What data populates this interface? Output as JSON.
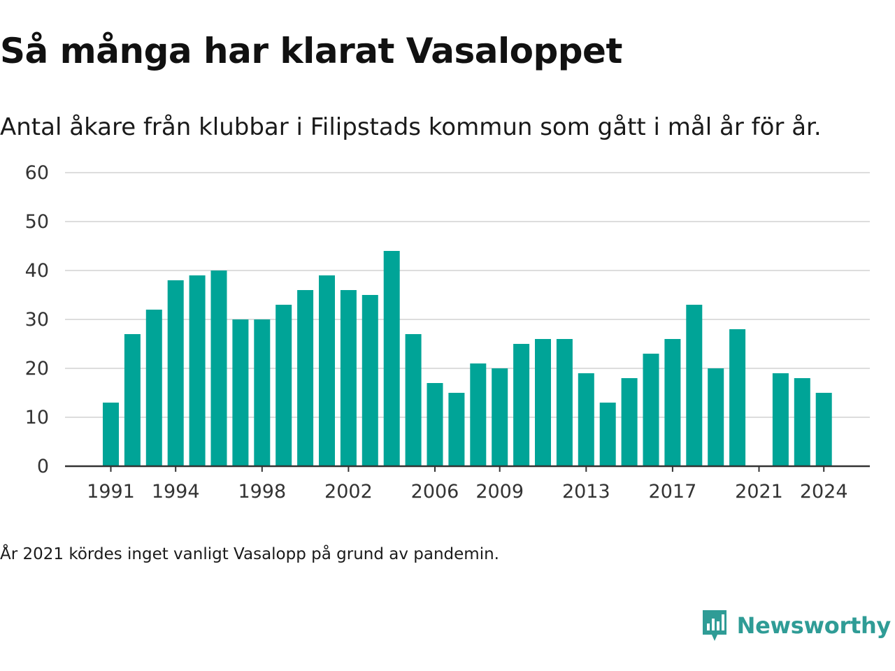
{
  "header": {
    "title": "Så många har klarat Vasaloppet",
    "subtitle": "Antal åkare från klubbar i Filipstads kommun som gått i mål år för år."
  },
  "footer": {
    "note": "År 2021 kördes inget vanligt Vasalopp på grund av pandemin.",
    "brand": "Newsworthy"
  },
  "colors": {
    "bar": "#00a497",
    "grid": "#dddddd",
    "axis": "#333333",
    "brand": "#2f9c96"
  },
  "chart_data": {
    "type": "bar",
    "x": [
      1991,
      1992,
      1993,
      1994,
      1995,
      1996,
      1997,
      1998,
      1999,
      2000,
      2001,
      2002,
      2003,
      2004,
      2005,
      2006,
      2007,
      2008,
      2009,
      2010,
      2011,
      2012,
      2013,
      2014,
      2015,
      2016,
      2017,
      2018,
      2019,
      2020,
      2021,
      2022,
      2023,
      2024
    ],
    "values": [
      13,
      27,
      32,
      38,
      39,
      40,
      30,
      30,
      33,
      36,
      39,
      36,
      35,
      44,
      27,
      17,
      15,
      21,
      20,
      25,
      26,
      26,
      19,
      13,
      18,
      23,
      26,
      33,
      20,
      28,
      null,
      19,
      18,
      15
    ],
    "xticks": [
      1991,
      1994,
      1998,
      2002,
      2006,
      2009,
      2013,
      2017,
      2021,
      2024
    ],
    "yticks": [
      0,
      10,
      20,
      30,
      40,
      50,
      60
    ],
    "ylim": [
      0,
      60
    ],
    "grid": true
  }
}
